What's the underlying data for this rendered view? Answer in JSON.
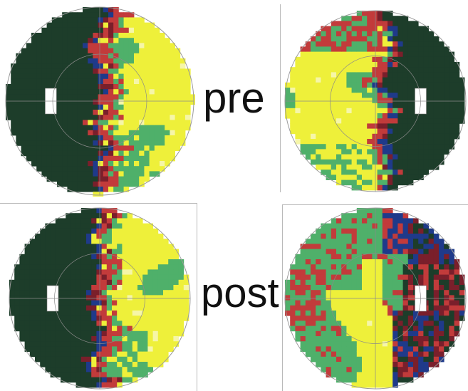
{
  "labels": {
    "pre": "pre",
    "post": "post"
  },
  "colors": {
    "background": "#ffffff",
    "dark_green": "#1d3d2a",
    "navy": "#1f3a8a",
    "maroon": "#7a1f2b",
    "red": "#c23b3b",
    "green": "#4fb06a",
    "yellow": "#eef03a",
    "light_yellow": "#f6f6a8",
    "grid_line": "#8a8a8a",
    "circle_outline": "#9a9a9a"
  },
  "panels": [
    {
      "id": "pre-left",
      "eye": "left",
      "blind_spot": "left",
      "state": "pre"
    },
    {
      "id": "pre-right",
      "eye": "right",
      "blind_spot": "right",
      "state": "pre"
    },
    {
      "id": "post-left",
      "eye": "left",
      "blind_spot": "left",
      "state": "post"
    },
    {
      "id": "post-right",
      "eye": "right",
      "blind_spot": "right",
      "state": "post"
    }
  ]
}
